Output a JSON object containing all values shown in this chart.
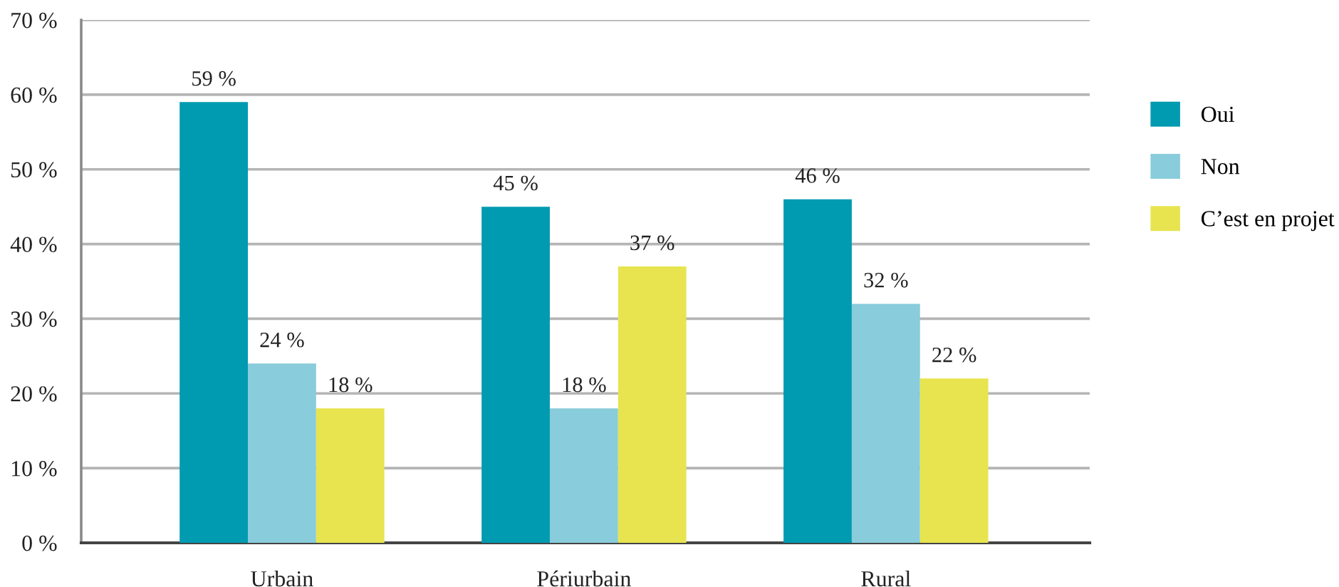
{
  "chart_data": {
    "type": "bar",
    "categories": [
      "Urbain",
      "Périurbain",
      "Rural"
    ],
    "series": [
      {
        "name": "Oui",
        "color": "#009ab1",
        "values": [
          59,
          45,
          46
        ],
        "value_labels": [
          "59 %",
          "45 %",
          "46 %"
        ]
      },
      {
        "name": "Non",
        "color": "#89ccdb",
        "values": [
          24,
          18,
          32
        ],
        "value_labels": [
          "24 %",
          "18 %",
          "32 %"
        ]
      },
      {
        "name": "C’est en projet",
        "color": "#e7e450",
        "values": [
          18,
          37,
          22
        ],
        "value_labels": [
          "18 %",
          "37 %",
          "22 %"
        ]
      }
    ],
    "ylim": [
      0,
      70
    ],
    "yticks": [
      {
        "value": 0,
        "label": "0 %"
      },
      {
        "value": 10,
        "label": "10 %"
      },
      {
        "value": 20,
        "label": "20 %"
      },
      {
        "value": 30,
        "label": "30 %"
      },
      {
        "value": 40,
        "label": "40 %"
      },
      {
        "value": 50,
        "label": "50 %"
      },
      {
        "value": 60,
        "label": "60 %"
      },
      {
        "value": 70,
        "label": "70 %"
      }
    ],
    "grid": "y",
    "legend": "right"
  }
}
